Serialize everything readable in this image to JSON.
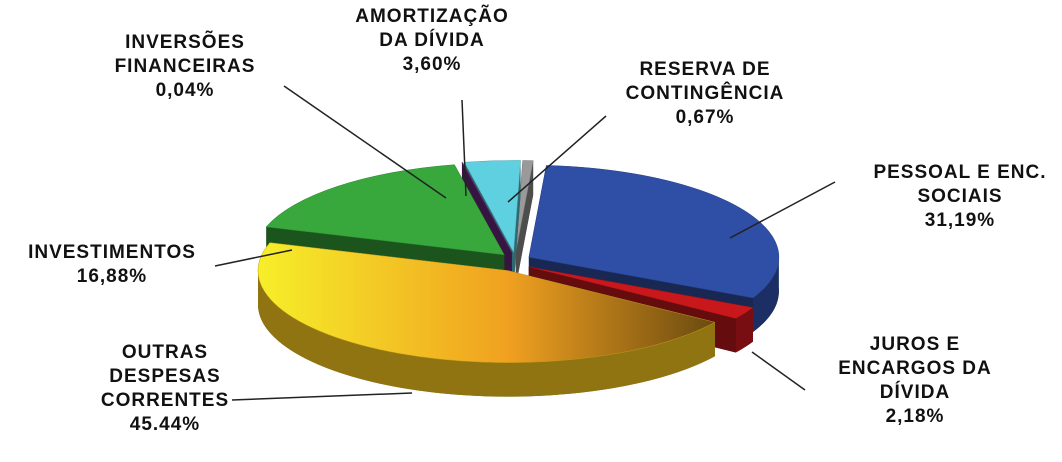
{
  "chart_data": {
    "type": "pie",
    "categories": [
      "PESSOAL E ENC. SOCIAIS",
      "JUROS E ENCARGOS DA DÍVIDA",
      "OUTRAS DESPESAS CORRENTES",
      "INVESTIMENTOS",
      "INVERSÕES FINANCEIRAS",
      "AMORTIZAÇÃO DA DÍVIDA",
      "RESERVA DE CONTINGÊNCIA"
    ],
    "values": [
      31.19,
      2.18,
      45.44,
      16.88,
      0.04,
      3.6,
      0.67
    ],
    "value_labels": [
      "31,19%",
      "2,18%",
      "45.44%",
      "16,88%",
      "0,04%",
      "3,60%",
      "0,67%"
    ],
    "colors": [
      "#2f4fa6",
      "#c8181c",
      "#f2c21e",
      "#38a83c",
      "#6b2a80",
      "#5fd0e0",
      "#9a9a9a"
    ]
  }
}
